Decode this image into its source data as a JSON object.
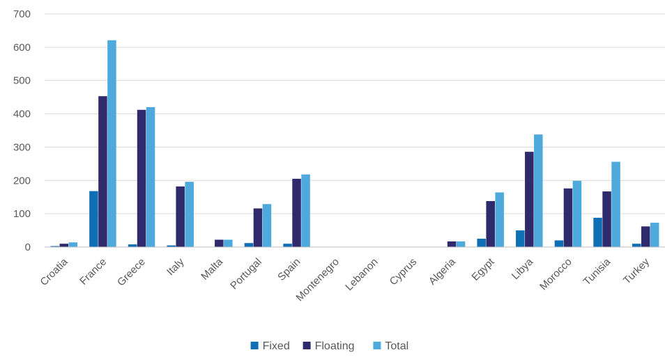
{
  "chart_data": {
    "type": "bar",
    "title": "",
    "xlabel": "",
    "ylabel": "",
    "ylim": [
      0,
      700
    ],
    "yticks": [
      0,
      100,
      200,
      300,
      400,
      500,
      600,
      700
    ],
    "grid": true,
    "legend_position": "bottom",
    "categories": [
      "Croatia",
      "France",
      "Greece",
      "Italy",
      "Malta",
      "Portugal",
      "Spain",
      "Montenegro",
      "Lebanon",
      "Cyprus",
      "Algeria",
      "Egypt",
      "Libya",
      "Morocco",
      "Tunisia",
      "Turkey"
    ],
    "series": [
      {
        "name": "Fixed",
        "color": "#0f6fb4",
        "values": [
          3,
          168,
          8,
          5,
          0,
          12,
          10,
          0,
          0,
          0,
          0,
          25,
          50,
          20,
          88,
          10
        ]
      },
      {
        "name": "Floating",
        "color": "#2e2a6b",
        "values": [
          10,
          453,
          412,
          182,
          22,
          116,
          205,
          0,
          0,
          0,
          17,
          138,
          286,
          176,
          167,
          62
        ]
      },
      {
        "name": "Total",
        "color": "#4ea9dd",
        "values": [
          14,
          621,
          420,
          196,
          22,
          129,
          218,
          0,
          0,
          0,
          17,
          164,
          338,
          199,
          256,
          73
        ]
      }
    ]
  }
}
